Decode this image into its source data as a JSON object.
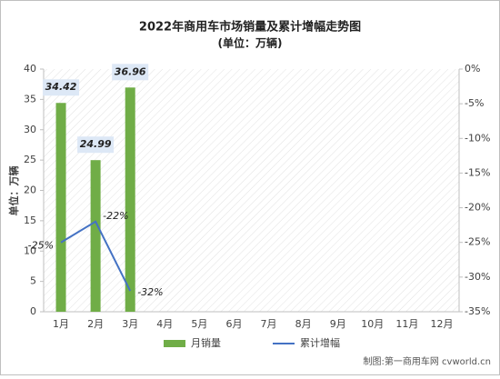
{
  "chart_data": {
    "type": "bar",
    "title": "2022年商用车市场销量及累计增幅走势图",
    "subtitle": "(单位：万辆)",
    "y_label": "单位：万辆",
    "source": "制图:第一商用车网 cvworld.cn",
    "categories": [
      "1月",
      "2月",
      "3月",
      "4月",
      "5月",
      "6月",
      "7月",
      "8月",
      "9月",
      "10月",
      "11月",
      "12月"
    ],
    "series": [
      {
        "name": "月销量",
        "type": "bar",
        "color": "#70ad47",
        "values": [
          34.42,
          24.99,
          36.96,
          null,
          null,
          null,
          null,
          null,
          null,
          null,
          null,
          null
        ]
      },
      {
        "name": "累计增幅",
        "type": "line",
        "axis": "y2",
        "color": "#4472c4",
        "values": [
          -25,
          -22,
          -32,
          null,
          null,
          null,
          null,
          null,
          null,
          null,
          null,
          null
        ],
        "value_labels": [
          "-25%",
          "-22%",
          "-32%",
          null,
          null,
          null,
          null,
          null,
          null,
          null,
          null,
          null
        ]
      }
    ],
    "ylim": [
      0,
      40
    ],
    "yticks": [
      0,
      5,
      10,
      15,
      20,
      25,
      30,
      35,
      40
    ],
    "y2lim": [
      -35,
      0
    ],
    "y2ticks": [
      {
        "value": 0,
        "label": "0%"
      },
      {
        "value": -5,
        "label": "-5%"
      },
      {
        "value": -10,
        "label": "-10%"
      },
      {
        "value": -15,
        "label": "-15%"
      },
      {
        "value": -20,
        "label": "-20%"
      },
      {
        "value": -25,
        "label": "-25%"
      },
      {
        "value": -30,
        "label": "-30%"
      },
      {
        "value": -35,
        "label": "-35%"
      }
    ],
    "legend": "bottom"
  }
}
